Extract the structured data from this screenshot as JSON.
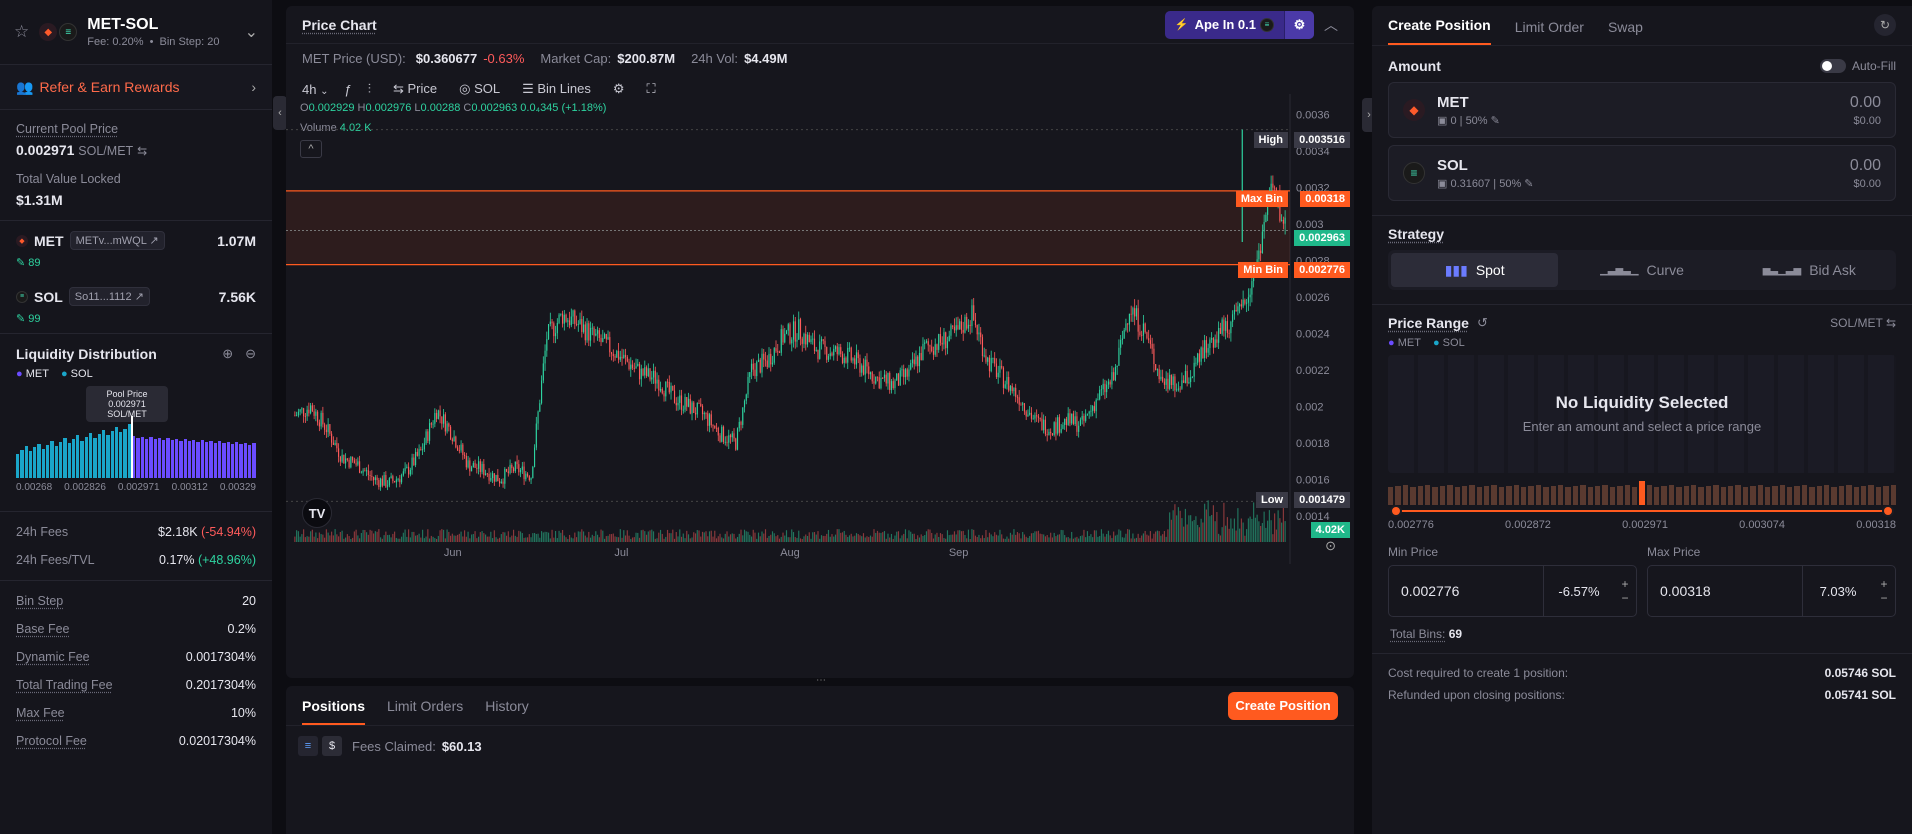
{
  "pair": {
    "name": "MET-SOL",
    "fee_label": "Fee: 0.20%",
    "bin_step_label": "Bin Step: 20",
    "separator": "•"
  },
  "refer": {
    "label": "Refer & Earn Rewards"
  },
  "pool": {
    "current_price_label": "Current Pool Price",
    "current_price": "0.002971",
    "current_price_unit": "SOL/MET",
    "tvl_label": "Total Value Locked",
    "tvl": "$1.31M"
  },
  "tokens": [
    {
      "symbol": "MET",
      "address": "METv...mWQL",
      "amount": "1.07M",
      "sub": "89"
    },
    {
      "symbol": "SOL",
      "address": "So11...1112",
      "amount": "7.56K",
      "sub": "99"
    }
  ],
  "liquidity": {
    "title": "Liquidity Distribution",
    "legend": [
      "MET",
      "SOL"
    ],
    "tooltip_title": "Pool Price",
    "tooltip_value": "0.002971 SOL/MET",
    "axis": [
      "0.00268",
      "0.002826",
      "0.002971",
      "0.00312",
      "0.00329"
    ]
  },
  "fees": {
    "fees_24h_label": "24h Fees",
    "fees_24h": "$2.18K",
    "fees_24h_change": "(-54.94%)",
    "fees_tvl_label": "24h Fees/TVL",
    "fees_tvl": "0.17%",
    "fees_tvl_change": "(+48.96%)"
  },
  "params": [
    {
      "label": "Bin Step",
      "value": "20"
    },
    {
      "label": "Base Fee",
      "value": "0.2%"
    },
    {
      "label": "Dynamic Fee",
      "value": "0.0017304%"
    },
    {
      "label": "Total Trading Fee",
      "value": "0.2017304%"
    },
    {
      "label": "Max Fee",
      "value": "10%"
    },
    {
      "label": "Protocol Fee",
      "value": "0.02017304%"
    }
  ],
  "chart_header": {
    "title": "Price Chart",
    "ape_label": "Ape In",
    "ape_amount": "0.1"
  },
  "info": {
    "price_label": "MET Price (USD):",
    "price": "$0.360677",
    "price_change": "-0.63%",
    "mcap_label": "Market Cap:",
    "mcap": "$200.87M",
    "vol_label": "24h Vol:",
    "vol": "$4.49M"
  },
  "toolbar": {
    "interval": "4h",
    "price": "Price",
    "sol": "SOL",
    "bin_lines": "Bin Lines"
  },
  "ohlc": {
    "o_label": "O",
    "o": "0.002929",
    "h_label": "H",
    "h": "0.002976",
    "l_label": "L",
    "l": "0.00288",
    "c_label": "C",
    "c": "0.002963",
    "change": "0.0₄345 (+1.18%)",
    "volume_label": "Volume",
    "volume": "4.02 K"
  },
  "chart_axis": {
    "y": [
      "0.0036",
      "0.0034",
      "0.0032",
      "0.003",
      "0.0028",
      "0.0026",
      "0.0024",
      "0.0022",
      "0.002",
      "0.0018",
      "0.0016",
      "0.0014"
    ],
    "x": [
      "Jun",
      "Jul",
      "Aug",
      "Sep"
    ]
  },
  "chart_tags": {
    "high_label": "High",
    "high": "0.003516",
    "max_bin_label": "Max Bin",
    "max_bin": "0.00318",
    "current": "0.002963",
    "min_bin_label": "Min Bin",
    "min_bin": "0.002776",
    "low_label": "Low",
    "low": "0.001479",
    "vol": "4.02K"
  },
  "chart_data": {
    "type": "candlestick",
    "x_range": [
      "May",
      "Sep"
    ],
    "ylim": [
      0.0013,
      0.0037
    ],
    "series": [
      {
        "name": "MET/SOL",
        "values": [
          0.00195,
          0.002,
          0.00188,
          0.00172,
          0.00168,
          0.0016,
          0.00158,
          0.00163,
          0.00175,
          0.00198,
          0.00185,
          0.00168,
          0.00165,
          0.0016,
          0.00166,
          0.00162,
          0.00238,
          0.0025,
          0.00245,
          0.00238,
          0.00232,
          0.00225,
          0.00218,
          0.00215,
          0.00205,
          0.002,
          0.00195,
          0.00185,
          0.0018,
          0.0022,
          0.00225,
          0.00238,
          0.00242,
          0.00232,
          0.0023,
          0.00228,
          0.00222,
          0.00215,
          0.00212,
          0.00218,
          0.00232,
          0.00235,
          0.0024,
          0.0025,
          0.00225,
          0.00215,
          0.00205,
          0.00192,
          0.00188,
          0.00192,
          0.0019,
          0.00205,
          0.00215,
          0.00255,
          0.0024,
          0.00215,
          0.0021,
          0.00218,
          0.00235,
          0.00243,
          0.0025,
          0.00275,
          0.0032,
          0.00296
        ]
      }
    ]
  },
  "bottom": {
    "tabs": [
      "Positions",
      "Limit Orders",
      "History"
    ],
    "create_label": "Create Position",
    "fees_claimed_label": "Fees Claimed:",
    "fees_claimed": "$60.13"
  },
  "right": {
    "tabs": [
      "Create Position",
      "Limit Order",
      "Swap"
    ],
    "amount_label": "Amount",
    "autofill_label": "Auto-Fill",
    "inputs": [
      {
        "symbol": "MET",
        "balance": "0",
        "pct": "50%",
        "value": "0.00",
        "usd": "$0.00"
      },
      {
        "symbol": "SOL",
        "balance": "0.31607",
        "pct": "50%",
        "value": "0.00",
        "usd": "$0.00"
      }
    ],
    "strategy_label": "Strategy",
    "strategies": [
      "Spot",
      "Curve",
      "Bid Ask"
    ],
    "price_range_label": "Price Range",
    "pair_unit": "SOL/MET",
    "legend": [
      "MET",
      "SOL"
    ],
    "no_liq_title": "No Liquidity Selected",
    "no_liq_sub": "Enter an amount and select a price range",
    "slider_labels": [
      "0.002776",
      "0.002872",
      "0.002971",
      "0.003074",
      "0.00318"
    ],
    "min_label": "Min Price",
    "min_value": "0.002776",
    "min_pct": "-6.57%",
    "max_label": "Max Price",
    "max_value": "0.00318",
    "max_pct": "7.03%",
    "total_bins_label": "Total Bins:",
    "total_bins": "69",
    "cost_label": "Cost required to create 1 position:",
    "cost": "0.05746 SOL",
    "refund_label": "Refunded upon closing positions:",
    "refund": "0.05741 SOL"
  },
  "colors": {
    "accent": "#ff5a1f",
    "green": "#2ed3a0",
    "red": "#ff5b5b",
    "met": "#6b4cff",
    "sol": "#1aa6c9"
  }
}
